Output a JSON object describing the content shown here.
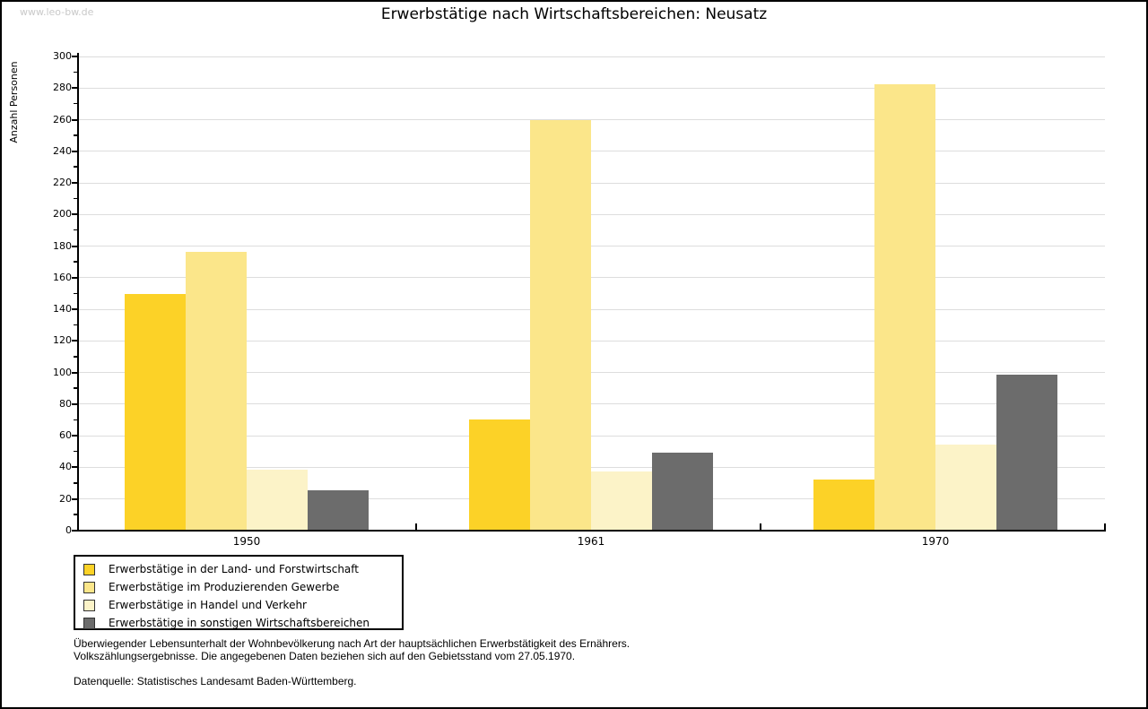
{
  "watermark": "www.leo-bw.de",
  "title": "Erwerbstätige nach Wirtschaftsbereichen: Neusatz",
  "chart_data": {
    "type": "bar",
    "title": "Erwerbstätige nach Wirtschaftsbereichen: Neusatz",
    "xlabel": "",
    "ylabel": "Anzahl Personen",
    "ylim": [
      0,
      300
    ],
    "ytick_step": 20,
    "yminor_step": 10,
    "grid": true,
    "legend_position": "bottom-left",
    "categories": [
      "1950",
      "1961",
      "1970"
    ],
    "series": [
      {
        "name": "Erwerbstätige in der Land- und Forstwirtschaft",
        "color": "#FCD227",
        "values": [
          149,
          70,
          32
        ]
      },
      {
        "name": "Erwerbstätige im Produzierenden Gewerbe",
        "color": "#FBE68A",
        "values": [
          176,
          259,
          282
        ]
      },
      {
        "name": "Erwerbstätige in Handel und Verkehr",
        "color": "#FCF3C8",
        "values": [
          38,
          37,
          54
        ]
      },
      {
        "name": "Erwerbstätige in sonstigen Wirtschaftsbereichen",
        "color": "#6C6C6C",
        "values": [
          25,
          49,
          98
        ]
      }
    ]
  },
  "footnotes": {
    "line1": "Überwiegender Lebensunterhalt der Wohnbevölkerung nach Art der hauptsächlichen Erwerbstätigkeit des Ernährers.",
    "line2": "Volkszählungsergebnisse. Die angegebenen Daten beziehen sich auf den Gebietsstand vom 27.05.1970.",
    "source": "Datenquelle: Statistisches Landesamt Baden-Württemberg."
  },
  "colors": {
    "gridline": "#DDDDDD",
    "axis": "#000000",
    "watermark": "#C9C9C9",
    "background": "#FFFFFF"
  }
}
